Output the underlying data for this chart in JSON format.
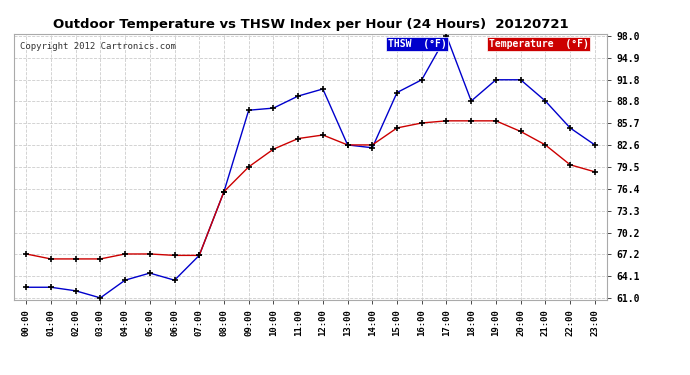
{
  "title": "Outdoor Temperature vs THSW Index per Hour (24 Hours)  20120721",
  "copyright": "Copyright 2012 Cartronics.com",
  "hours": [
    "00:00",
    "01:00",
    "02:00",
    "03:00",
    "04:00",
    "05:00",
    "06:00",
    "07:00",
    "08:00",
    "09:00",
    "10:00",
    "11:00",
    "12:00",
    "13:00",
    "14:00",
    "15:00",
    "16:00",
    "17:00",
    "18:00",
    "19:00",
    "20:00",
    "21:00",
    "22:00",
    "23:00"
  ],
  "thsw": [
    62.5,
    62.5,
    62.0,
    61.0,
    63.5,
    64.5,
    63.5,
    67.0,
    76.0,
    87.5,
    87.8,
    89.5,
    90.5,
    82.6,
    82.2,
    90.0,
    91.8,
    98.0,
    88.8,
    91.8,
    91.8,
    88.8,
    85.0,
    82.6
  ],
  "temperature": [
    67.2,
    66.5,
    66.5,
    66.5,
    67.2,
    67.2,
    67.0,
    67.0,
    76.0,
    79.5,
    82.0,
    83.5,
    84.0,
    82.6,
    82.6,
    85.0,
    85.7,
    86.0,
    86.0,
    86.0,
    84.5,
    82.6,
    79.8,
    78.8
  ],
  "ylim_min": 61.0,
  "ylim_max": 98.0,
  "yticks": [
    61.0,
    64.1,
    67.2,
    70.2,
    73.3,
    76.4,
    79.5,
    82.6,
    85.7,
    88.8,
    91.8,
    94.9,
    98.0
  ],
  "thsw_color": "#0000cc",
  "temp_color": "#cc0000",
  "marker_color": "#000000",
  "bg_color": "#ffffff",
  "grid_color": "#cccccc",
  "legend_thsw_bg": "#0000cc",
  "legend_temp_bg": "#cc0000",
  "legend_thsw_label": "THSW  (°F)",
  "legend_temp_label": "Temperature  (°F)"
}
